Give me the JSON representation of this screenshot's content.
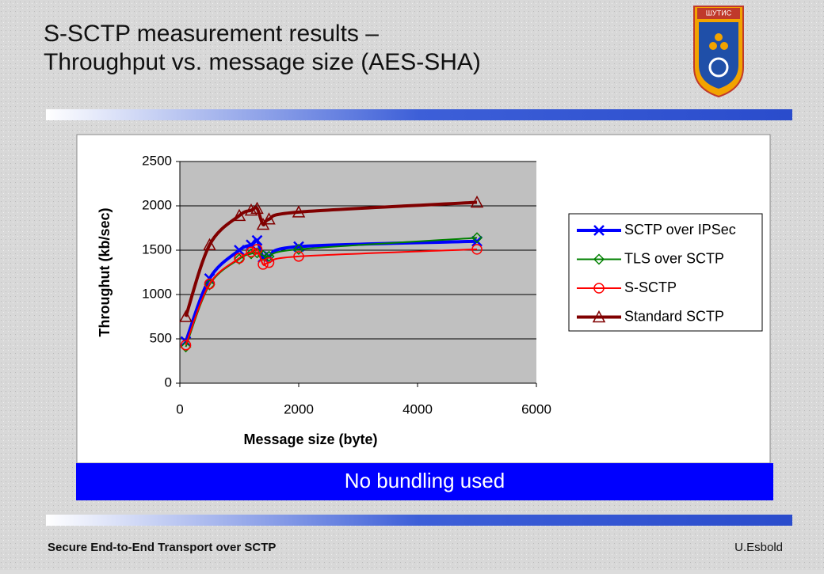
{
  "slide": {
    "title_line1": "S-SCTP measurement results –",
    "title_line2": "Throughput vs. message size (AES-SHA)",
    "logo_text": "ШУТИС",
    "banner": "No bundling used",
    "footer_left": "Secure End-to-End Transport over SCTP",
    "footer_right": "U.Esbold"
  },
  "chart_data": {
    "type": "line",
    "x_label": "Message size (byte)",
    "y_label": "Throughut (kb/sec)",
    "x": [
      100,
      500,
      1000,
      1200,
      1300,
      1400,
      1500,
      2000,
      5000
    ],
    "series": [
      {
        "name": "SCTP over IPSec",
        "color": "#0000ff",
        "marker": "x",
        "values": [
          470,
          1180,
          1500,
          1560,
          1610,
          1420,
          1430,
          1540,
          1600
        ]
      },
      {
        "name": "TLS over SCTP",
        "color": "#008000",
        "marker": "diamond",
        "values": [
          410,
          1110,
          1400,
          1460,
          1470,
          1440,
          1430,
          1510,
          1640
        ]
      },
      {
        "name": "S-SCTP",
        "color": "#ff0000",
        "marker": "circle",
        "values": [
          430,
          1120,
          1410,
          1480,
          1510,
          1340,
          1360,
          1430,
          1510
        ]
      },
      {
        "name": "Standard SCTP",
        "color": "#800000",
        "marker": "triangle",
        "values": [
          750,
          1560,
          1890,
          1950,
          1970,
          1790,
          1850,
          1930,
          2040
        ]
      }
    ],
    "xlim": [
      0,
      6000
    ],
    "xticks": [
      0,
      2000,
      4000,
      6000
    ],
    "ylim": [
      0,
      2500
    ],
    "yticks": [
      0,
      500,
      1000,
      1500,
      2000,
      2500
    ],
    "grid": true,
    "legend": "right"
  }
}
